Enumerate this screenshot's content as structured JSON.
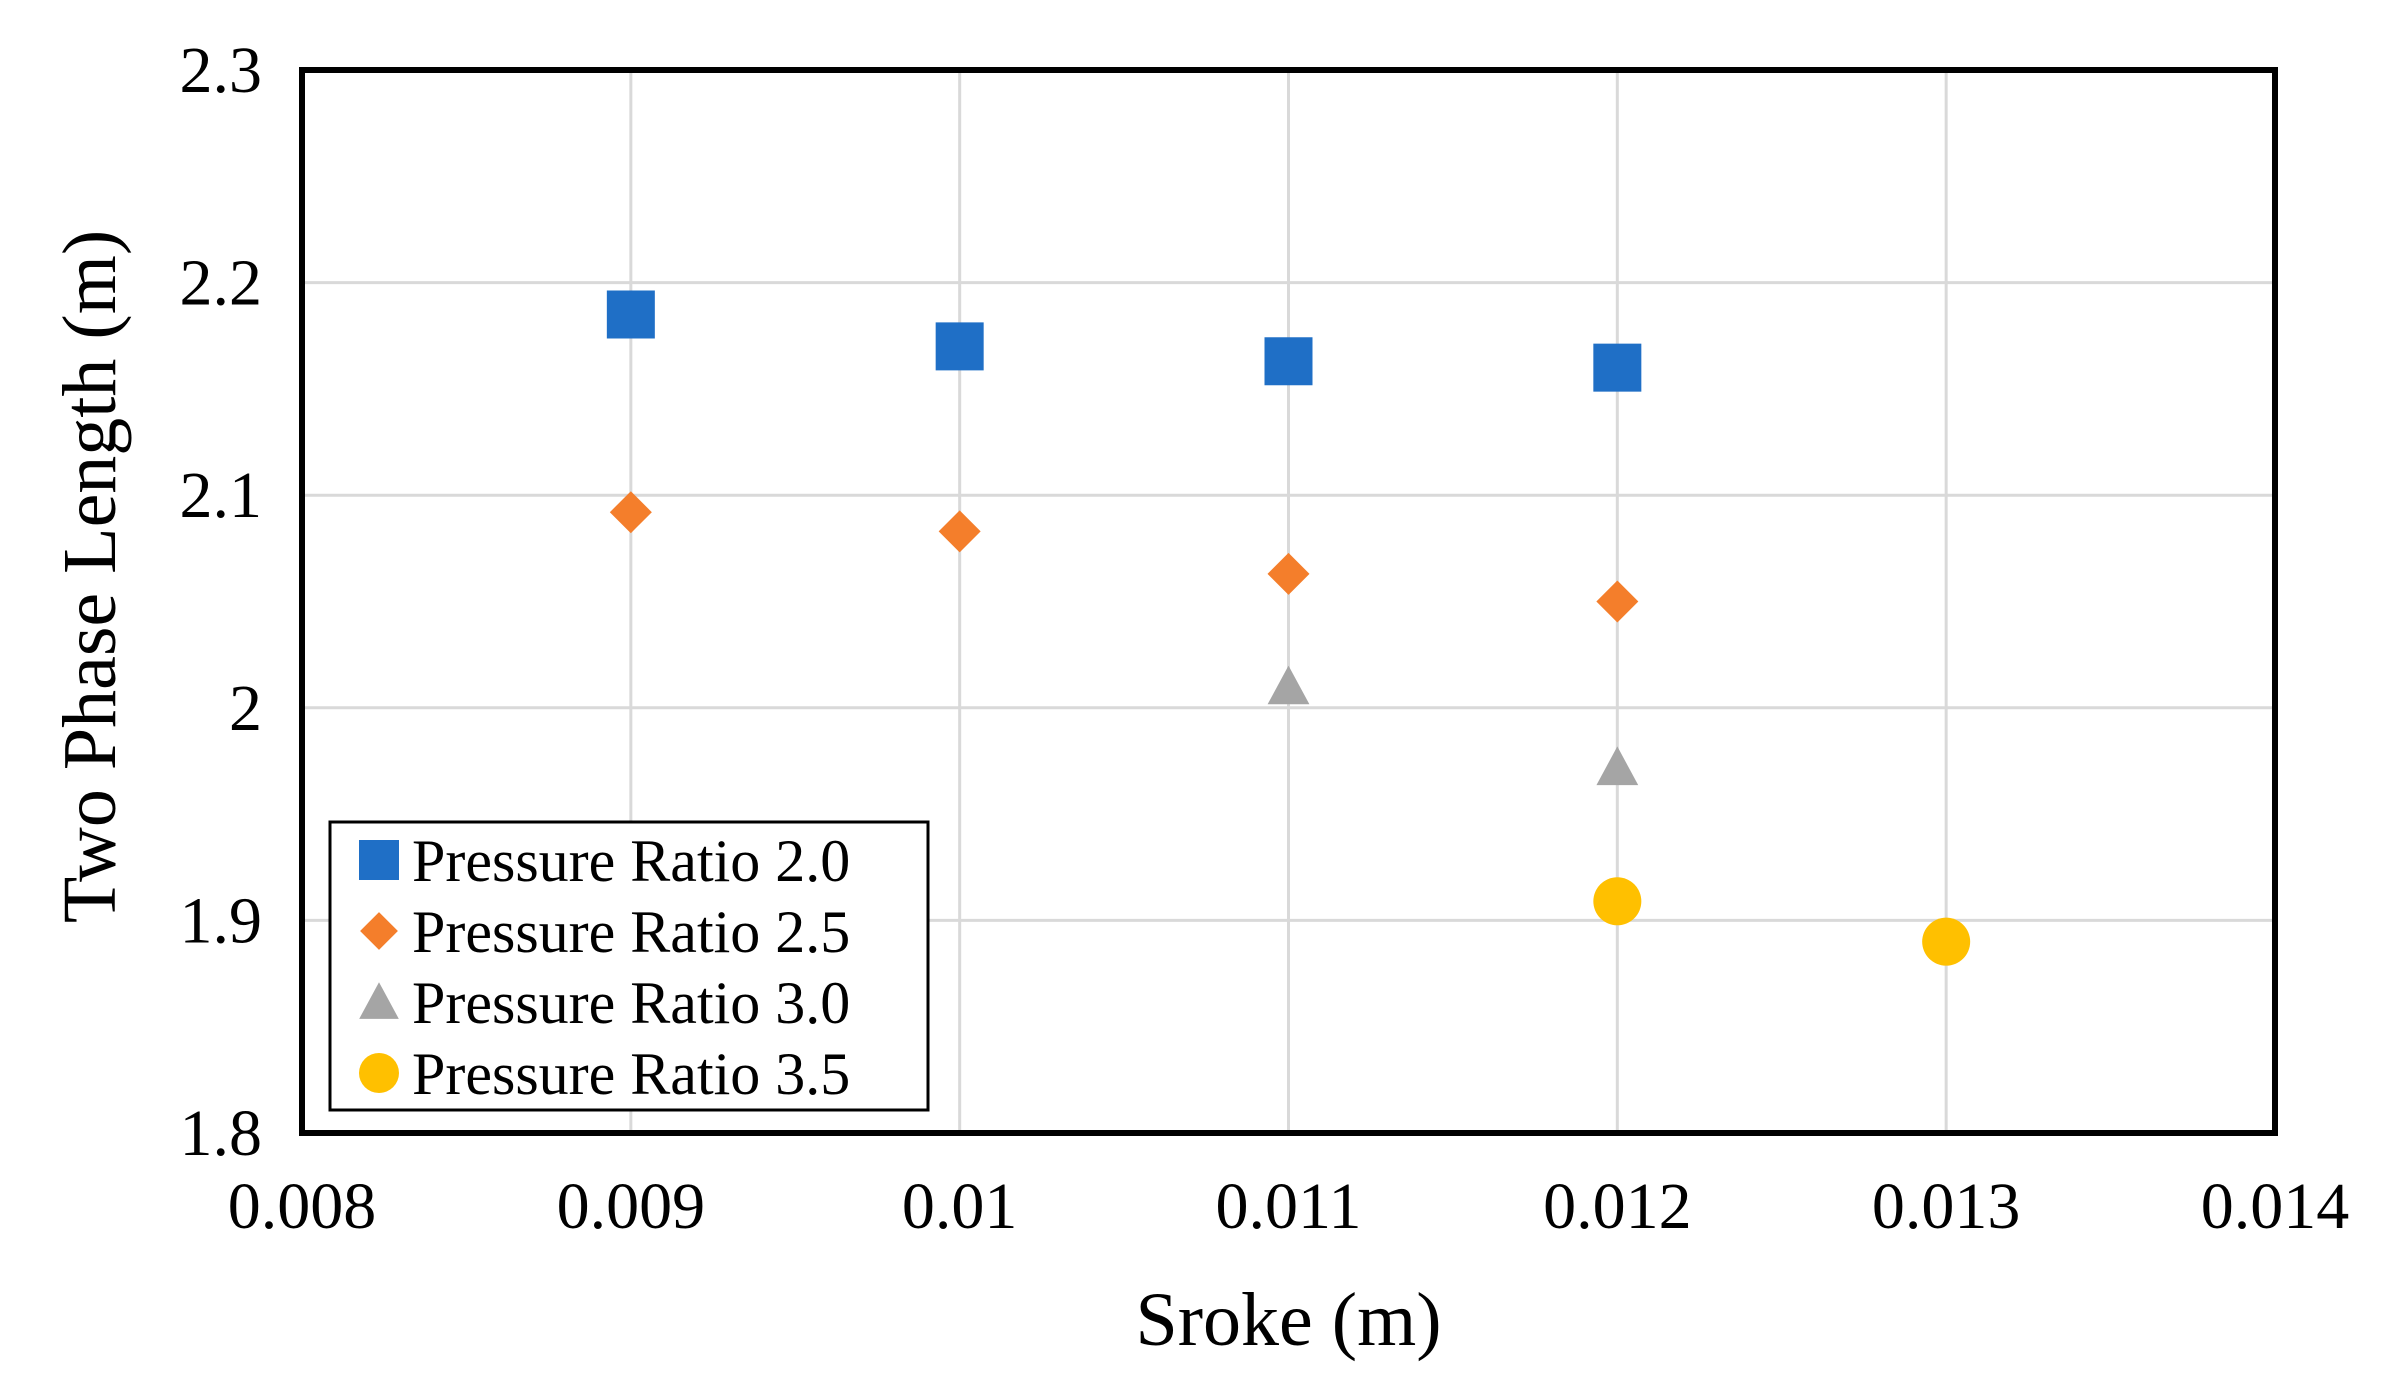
{
  "chart_data": {
    "type": "scatter",
    "title": "",
    "xlabel": "Sroke (m)",
    "ylabel": "Two Phase Length (m)",
    "xlim": [
      0.008,
      0.014
    ],
    "ylim": [
      1.8,
      2.3
    ],
    "xticks": [
      0.008,
      0.009,
      0.01,
      0.011,
      0.012,
      0.013,
      0.014
    ],
    "xtick_labels": [
      "0.008",
      "0.009",
      "0.01",
      "0.011",
      "0.012",
      "0.013",
      "0.014"
    ],
    "yticks": [
      1.8,
      1.9,
      2.0,
      2.1,
      2.2,
      2.3
    ],
    "ytick_labels": [
      "1.8",
      "1.9",
      "2",
      "2.1",
      "2.2",
      "2.3"
    ],
    "grid": true,
    "legend_position": "bottom-left",
    "series": [
      {
        "name": "Pressure Ratio 2.0",
        "marker": "square",
        "color": "#1F6FC6",
        "points": [
          [
            0.009,
            2.185
          ],
          [
            0.01,
            2.17
          ],
          [
            0.011,
            2.163
          ],
          [
            0.012,
            2.16
          ]
        ]
      },
      {
        "name": "Pressure Ratio 2.5",
        "marker": "diamond",
        "color": "#F47E2B",
        "points": [
          [
            0.009,
            2.092
          ],
          [
            0.01,
            2.083
          ],
          [
            0.011,
            2.063
          ],
          [
            0.012,
            2.05
          ]
        ]
      },
      {
        "name": "Pressure Ratio 3.0",
        "marker": "triangle",
        "color": "#A5A5A5",
        "points": [
          [
            0.011,
            2.01
          ],
          [
            0.012,
            1.972
          ]
        ]
      },
      {
        "name": "Pressure Ratio 3.5",
        "marker": "circle",
        "color": "#FFC000",
        "points": [
          [
            0.012,
            1.909
          ],
          [
            0.013,
            1.89
          ]
        ]
      }
    ]
  }
}
